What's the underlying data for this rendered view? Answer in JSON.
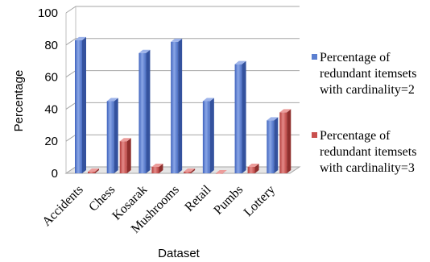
{
  "chart_data": {
    "type": "bar",
    "title": "",
    "xlabel": "Dataset",
    "ylabel": "Percentage",
    "categories": [
      "Accidents",
      "Chess",
      "Kosarak",
      "Mushrooms",
      "Retail",
      "Pumbs",
      "Lottery"
    ],
    "series": [
      {
        "name": "Percentage of redundant itemsets with cardinality=2",
        "name_lines": [
          "Percentage of",
          "redundant itemsets",
          "with cardinality=2"
        ],
        "values": [
          83,
          45,
          75,
          82,
          45,
          68,
          33
        ],
        "color": "#5b7fd0"
      },
      {
        "name": "Percentage of redundant itemsets with cardinality=3",
        "name_lines": [
          "Percentage of",
          "redundant itemsets",
          "with cardinality=3"
        ],
        "values": [
          1,
          20,
          4,
          1,
          0,
          4,
          38
        ],
        "color": "#c9504e"
      }
    ],
    "ylim": [
      0,
      100
    ],
    "yticks": [
      0,
      20,
      40,
      60,
      80,
      100
    ],
    "grid": true,
    "legend": "right",
    "style": "3d-column"
  }
}
